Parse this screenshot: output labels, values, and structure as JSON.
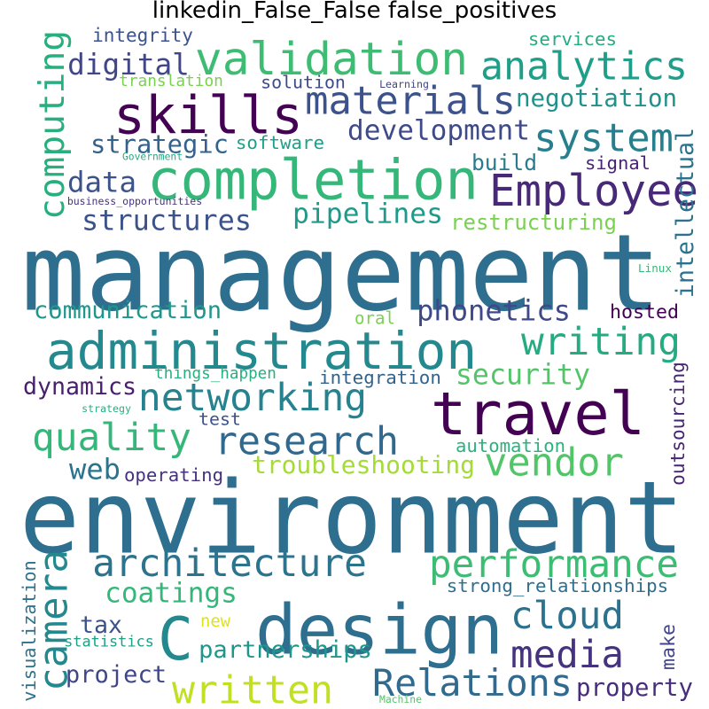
{
  "title": "linkedin_False_False false_positives",
  "chart_data": {
    "type": "wordcloud",
    "title": "linkedin_False_False false_positives",
    "words": [
      {
        "text": "management",
        "color": "#2e6e8e"
      },
      {
        "text": "environment",
        "color": "#2e6e8e"
      },
      {
        "text": "design",
        "color": "#2e6e8e"
      },
      {
        "text": "completion",
        "color": "#35b779"
      },
      {
        "text": "validation",
        "color": "#3fbc73"
      },
      {
        "text": "administration",
        "color": "#23898e"
      },
      {
        "text": "travel",
        "color": "#440154"
      },
      {
        "text": "skills",
        "color": "#440154"
      },
      {
        "text": "materials",
        "color": "#3b528b"
      },
      {
        "text": "analytics",
        "color": "#1f9e89"
      },
      {
        "text": "computing",
        "color": "#29af7f"
      },
      {
        "text": "system",
        "color": "#277f8e"
      },
      {
        "text": "Employee",
        "color": "#482878"
      },
      {
        "text": "development",
        "color": "#3e4a89"
      },
      {
        "text": "negotiation",
        "color": "#21918c"
      },
      {
        "text": "digital",
        "color": "#404688"
      },
      {
        "text": "networking",
        "color": "#26828e"
      },
      {
        "text": "quality",
        "color": "#35b779"
      },
      {
        "text": "research",
        "color": "#31688e"
      },
      {
        "text": "vendor",
        "color": "#52c569"
      },
      {
        "text": "writing",
        "color": "#25ab82"
      },
      {
        "text": "phonetics",
        "color": "#3e4989"
      },
      {
        "text": "pipelines",
        "color": "#1f9a8a"
      },
      {
        "text": "architecture",
        "color": "#2c738e"
      },
      {
        "text": "performance",
        "color": "#3dbc74"
      },
      {
        "text": "camera",
        "color": "#23898e"
      },
      {
        "text": "cloud",
        "color": "#2c728e"
      },
      {
        "text": "media",
        "color": "#46337f"
      },
      {
        "text": "written",
        "color": "#c2df23"
      },
      {
        "text": "Relations",
        "color": "#306a8e"
      },
      {
        "text": "C",
        "color": "#23898e"
      },
      {
        "text": "structures",
        "color": "#3b528b"
      },
      {
        "text": "data",
        "color": "#3b528b"
      },
      {
        "text": "strategic",
        "color": "#33638d"
      },
      {
        "text": "security",
        "color": "#52c569"
      },
      {
        "text": "dynamics",
        "color": "#481f70"
      },
      {
        "text": "communication",
        "color": "#1f968b"
      },
      {
        "text": "troubleshooting",
        "color": "#a5db36"
      },
      {
        "text": "coatings",
        "color": "#35b779"
      },
      {
        "text": "partnerships",
        "color": "#1f968b"
      },
      {
        "text": "web",
        "color": "#2c738e"
      },
      {
        "text": "project",
        "color": "#3f4788"
      },
      {
        "text": "tax",
        "color": "#3b528b"
      },
      {
        "text": "property",
        "color": "#472d7b"
      },
      {
        "text": "intellectual",
        "color": "#2c728e"
      },
      {
        "text": "outsourcing",
        "color": "#482475"
      },
      {
        "text": "visualization",
        "color": "#2c728e"
      },
      {
        "text": "integrity",
        "color": "#3b528b"
      },
      {
        "text": "services",
        "color": "#25ab82"
      },
      {
        "text": "translation",
        "color": "#7ad151"
      },
      {
        "text": "solution",
        "color": "#3e4989"
      },
      {
        "text": "software",
        "color": "#1fa088"
      },
      {
        "text": "build",
        "color": "#287c8e"
      },
      {
        "text": "signal",
        "color": "#482475"
      },
      {
        "text": "restructuring",
        "color": "#7ad151"
      },
      {
        "text": "hosted",
        "color": "#440154"
      },
      {
        "text": "oral",
        "color": "#7ad151"
      },
      {
        "text": "integration",
        "color": "#33638d"
      },
      {
        "text": "things_happen",
        "color": "#29af7f"
      },
      {
        "text": "test",
        "color": "#3b528b"
      },
      {
        "text": "automation",
        "color": "#2db27d"
      },
      {
        "text": "operating",
        "color": "#46327e"
      },
      {
        "text": "strong_relationships",
        "color": "#2e6e8e"
      },
      {
        "text": "statistics",
        "color": "#1fa088"
      },
      {
        "text": "new",
        "color": "#dde318"
      },
      {
        "text": "make",
        "color": "#414487"
      },
      {
        "text": "Government",
        "color": "#25ab82"
      },
      {
        "text": "business_opportunities",
        "color": "#46327e"
      },
      {
        "text": "Learning",
        "color": "#414487"
      },
      {
        "text": "Linux",
        "color": "#35b779"
      },
      {
        "text": "strategy",
        "color": "#29af7f"
      },
      {
        "text": "Machine",
        "color": "#52c569"
      }
    ]
  }
}
